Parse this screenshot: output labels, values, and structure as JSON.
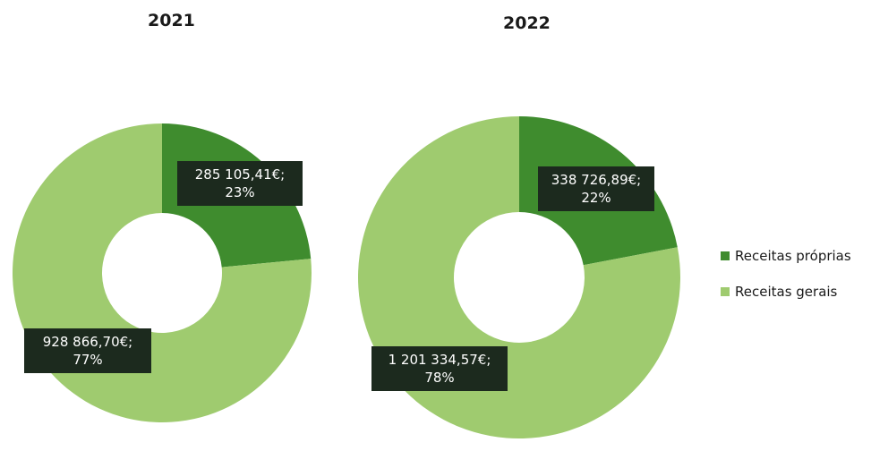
{
  "colors": {
    "proprias": "#3f8c2e",
    "gerais": "#9fcb6f"
  },
  "legend": [
    {
      "label": "Receitas próprias",
      "color": "#3f8c2e"
    },
    {
      "label": "Receitas gerais",
      "color": "#9fcb6f"
    }
  ],
  "chart_data": [
    {
      "type": "pie",
      "title": "2021",
      "slices": [
        {
          "name": "Receitas próprias",
          "value": 285105.41,
          "value_label": "285 105,41€;",
          "percent": 23,
          "percent_label": "23%"
        },
        {
          "name": "Receitas gerais",
          "value": 928866.7,
          "value_label": "928 866,70€;",
          "percent": 77,
          "percent_label": "77%"
        }
      ],
      "legend_position": "right"
    },
    {
      "type": "pie",
      "title": "2022",
      "slices": [
        {
          "name": "Receitas próprias",
          "value": 338726.89,
          "value_label": "338 726,89€;",
          "percent": 22,
          "percent_label": "22%"
        },
        {
          "name": "Receitas gerais",
          "value": 1201334.57,
          "value_label": "1 201 334,57€;",
          "percent": 78,
          "percent_label": "78%"
        }
      ],
      "legend_position": "right"
    }
  ]
}
